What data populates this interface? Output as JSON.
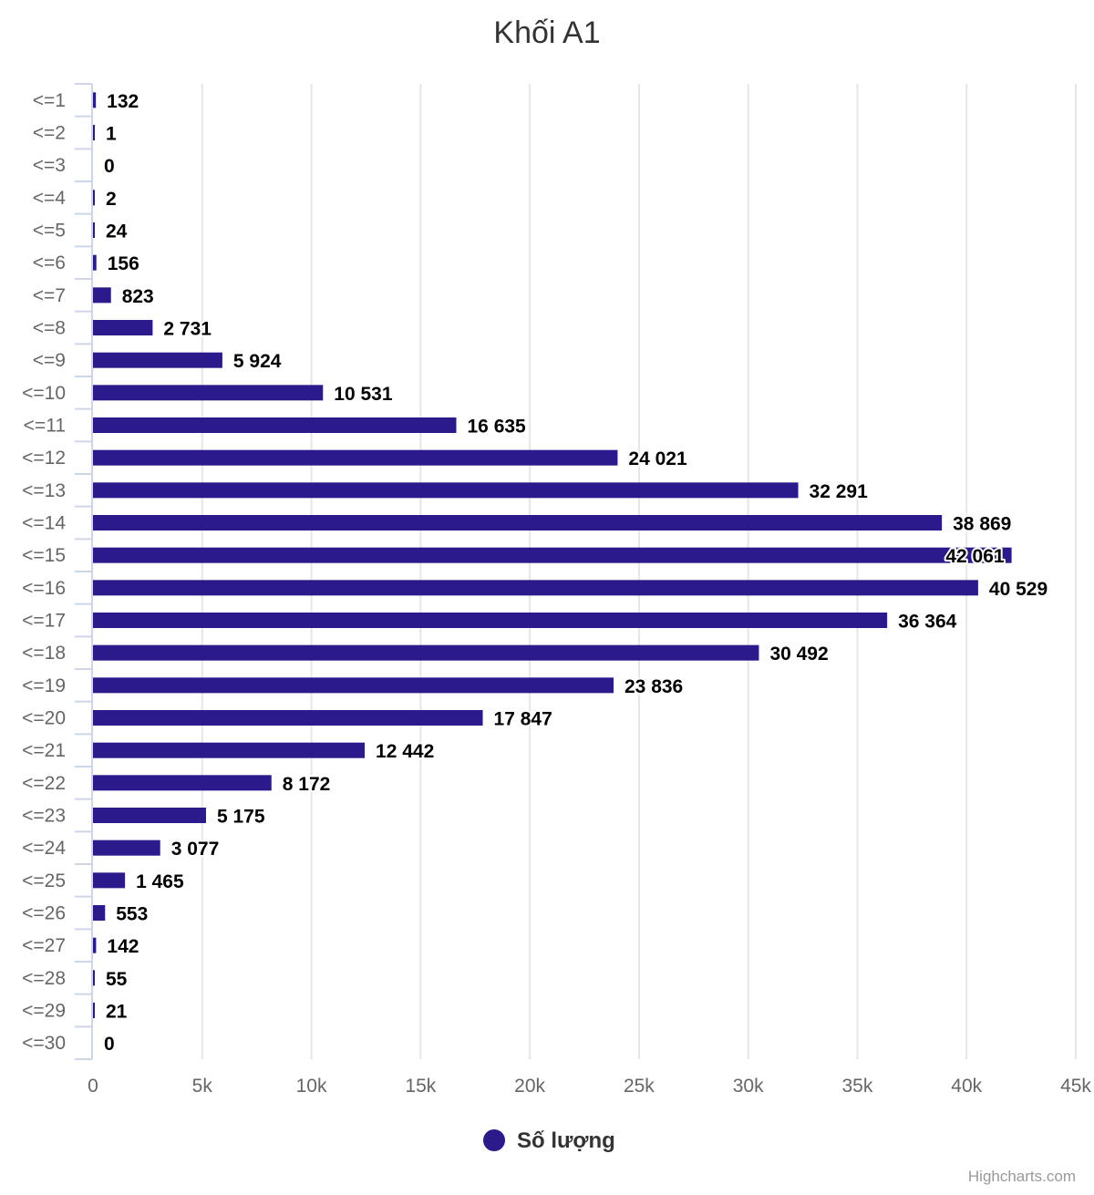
{
  "chart_data": {
    "type": "bar",
    "orientation": "horizontal",
    "title": "Khối A1",
    "categories": [
      "<=1",
      "<=2",
      "<=3",
      "<=4",
      "<=5",
      "<=6",
      "<=7",
      "<=8",
      "<=9",
      "<=10",
      "<=11",
      "<=12",
      "<=13",
      "<=14",
      "<=15",
      "<=16",
      "<=17",
      "<=18",
      "<=19",
      "<=20",
      "<=21",
      "<=22",
      "<=23",
      "<=24",
      "<=25",
      "<=26",
      "<=27",
      "<=28",
      "<=29",
      "<=30"
    ],
    "series": [
      {
        "name": "Số lượng",
        "color": "#2b1a8c",
        "values": [
          132,
          1,
          0,
          2,
          24,
          156,
          823,
          2731,
          5924,
          10531,
          16635,
          24021,
          32291,
          38869,
          42061,
          40529,
          36364,
          30492,
          23836,
          17847,
          12442,
          8172,
          5175,
          3077,
          1465,
          553,
          142,
          55,
          21,
          0
        ],
        "value_labels": [
          "132",
          "1",
          "0",
          "2",
          "24",
          "156",
          "823",
          "2 731",
          "5 924",
          "10 531",
          "16 635",
          "24 021",
          "32 291",
          "38 869",
          "42 061",
          "40 529",
          "36 364",
          "30 492",
          "23 836",
          "17 847",
          "12 442",
          "8 172",
          "5 175",
          "3 077",
          "1 465",
          "553",
          "142",
          "55",
          "21",
          "0"
        ]
      }
    ],
    "x_axis": {
      "range": [
        0,
        45000
      ],
      "ticks": [
        0,
        5000,
        10000,
        15000,
        20000,
        25000,
        30000,
        35000,
        40000,
        45000
      ],
      "tick_labels": [
        "0",
        "5k",
        "10k",
        "15k",
        "20k",
        "25k",
        "30k",
        "35k",
        "40k",
        "45k"
      ],
      "grid": true
    },
    "legend": {
      "position": "bottom-center",
      "label": "Số lượng"
    },
    "credits": "Highcharts.com"
  }
}
